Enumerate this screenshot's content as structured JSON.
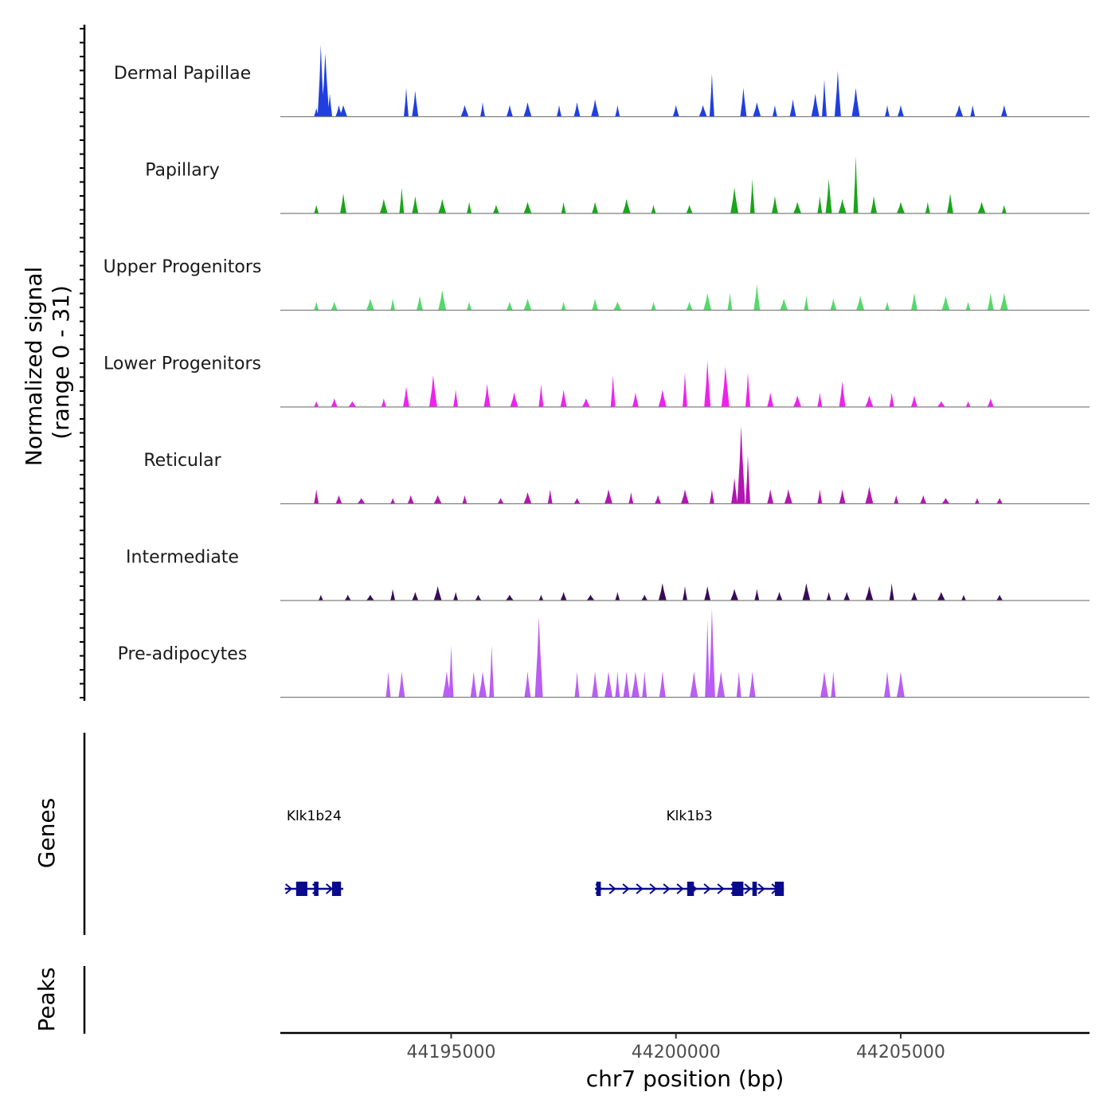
{
  "chart_data": {
    "type": "area",
    "chromosome": "chr7",
    "xlabel": "chr7 position (bp)",
    "ylabel": "Normalized signal",
    "ylabel_range": "(range 0 - 31)",
    "ylim": [
      0,
      31
    ],
    "xlim": [
      44191200,
      44209200
    ],
    "x_ticks": [
      44195000,
      44200000,
      44205000
    ],
    "x_tick_labels": [
      "44195000",
      "44200000",
      "44205000"
    ],
    "track_labels": [
      "Dermal Papillae",
      "Papillary",
      "Upper Progenitors",
      "Lower Progenitors",
      "Reticular",
      "Intermediate",
      "Pre-adipocytes"
    ],
    "series": [
      {
        "name": "Dermal Papillae",
        "color": "#1f3fe0",
        "values": [
          [
            44192000,
            3
          ],
          [
            44192100,
            25
          ],
          [
            44192200,
            22
          ],
          [
            44192300,
            8
          ],
          [
            44192500,
            4
          ],
          [
            44192600,
            4
          ],
          [
            44194000,
            10
          ],
          [
            44194200,
            9
          ],
          [
            44195300,
            4
          ],
          [
            44195700,
            5
          ],
          [
            44196300,
            4
          ],
          [
            44196700,
            5
          ],
          [
            44197400,
            4
          ],
          [
            44197800,
            5
          ],
          [
            44198200,
            6
          ],
          [
            44198700,
            4
          ],
          [
            44200000,
            4
          ],
          [
            44200600,
            4
          ],
          [
            44200800,
            15
          ],
          [
            44201500,
            10
          ],
          [
            44201800,
            5
          ],
          [
            44202200,
            4
          ],
          [
            44202600,
            6
          ],
          [
            44203100,
            8
          ],
          [
            44203300,
            13
          ],
          [
            44203600,
            16
          ],
          [
            44204000,
            10
          ],
          [
            44204700,
            4
          ],
          [
            44205000,
            4
          ],
          [
            44206300,
            4
          ],
          [
            44206600,
            4
          ],
          [
            44207300,
            4
          ]
        ]
      },
      {
        "name": "Papillary",
        "color": "#1aa51a",
        "values": [
          [
            44192000,
            3
          ],
          [
            44192600,
            7
          ],
          [
            44193500,
            5
          ],
          [
            44193900,
            9
          ],
          [
            44194200,
            6
          ],
          [
            44194800,
            5
          ],
          [
            44195400,
            4
          ],
          [
            44196000,
            3
          ],
          [
            44196700,
            4
          ],
          [
            44197500,
            4
          ],
          [
            44198200,
            4
          ],
          [
            44198900,
            5
          ],
          [
            44199500,
            3
          ],
          [
            44200300,
            3
          ],
          [
            44201300,
            9
          ],
          [
            44201700,
            12
          ],
          [
            44202200,
            6
          ],
          [
            44202700,
            4
          ],
          [
            44203200,
            6
          ],
          [
            44203400,
            12
          ],
          [
            44203700,
            5
          ],
          [
            44204000,
            20
          ],
          [
            44204400,
            6
          ],
          [
            44205000,
            4
          ],
          [
            44205600,
            4
          ],
          [
            44206100,
            7
          ],
          [
            44206800,
            4
          ],
          [
            44207300,
            3
          ]
        ]
      },
      {
        "name": "Upper Progenitors",
        "color": "#55d96a",
        "values": [
          [
            44192000,
            3
          ],
          [
            44192400,
            3
          ],
          [
            44193200,
            4
          ],
          [
            44193700,
            4
          ],
          [
            44194300,
            5
          ],
          [
            44194800,
            7
          ],
          [
            44195400,
            3
          ],
          [
            44196300,
            3
          ],
          [
            44196700,
            4
          ],
          [
            44197500,
            3
          ],
          [
            44198200,
            4
          ],
          [
            44198700,
            3
          ],
          [
            44199500,
            3
          ],
          [
            44200300,
            3
          ],
          [
            44200700,
            6
          ],
          [
            44201200,
            6
          ],
          [
            44201800,
            9
          ],
          [
            44202400,
            4
          ],
          [
            44202900,
            5
          ],
          [
            44203500,
            4
          ],
          [
            44204100,
            5
          ],
          [
            44204700,
            3
          ],
          [
            44205300,
            6
          ],
          [
            44206000,
            5
          ],
          [
            44206500,
            3
          ],
          [
            44207000,
            6
          ],
          [
            44207300,
            6
          ]
        ]
      },
      {
        "name": "Lower Progenitors",
        "color": "#ee22ee",
        "values": [
          [
            44192000,
            2
          ],
          [
            44192400,
            3
          ],
          [
            44192800,
            2
          ],
          [
            44193500,
            3
          ],
          [
            44194000,
            7
          ],
          [
            44194600,
            11
          ],
          [
            44195100,
            6
          ],
          [
            44195800,
            8
          ],
          [
            44196400,
            5
          ],
          [
            44197000,
            8
          ],
          [
            44197500,
            6
          ],
          [
            44198000,
            3
          ],
          [
            44198600,
            11
          ],
          [
            44199100,
            5
          ],
          [
            44199700,
            6
          ],
          [
            44200200,
            12
          ],
          [
            44200700,
            16
          ],
          [
            44201100,
            14
          ],
          [
            44201600,
            12
          ],
          [
            44202100,
            5
          ],
          [
            44202700,
            4
          ],
          [
            44203200,
            5
          ],
          [
            44203700,
            9
          ],
          [
            44204300,
            4
          ],
          [
            44204800,
            5
          ],
          [
            44205300,
            4
          ],
          [
            44205900,
            2
          ],
          [
            44206500,
            2
          ],
          [
            44207000,
            3
          ]
        ]
      },
      {
        "name": "Reticular",
        "color": "#b215b2",
        "values": [
          [
            44192000,
            5
          ],
          [
            44192500,
            3
          ],
          [
            44193000,
            2
          ],
          [
            44193700,
            2
          ],
          [
            44194100,
            3
          ],
          [
            44194700,
            3
          ],
          [
            44195300,
            3
          ],
          [
            44196100,
            2
          ],
          [
            44196700,
            4
          ],
          [
            44197200,
            5
          ],
          [
            44197800,
            2
          ],
          [
            44198500,
            5
          ],
          [
            44199000,
            4
          ],
          [
            44199600,
            3
          ],
          [
            44200200,
            5
          ],
          [
            44200800,
            5
          ],
          [
            44201300,
            9
          ],
          [
            44201450,
            27
          ],
          [
            44201600,
            17
          ],
          [
            44202100,
            5
          ],
          [
            44202500,
            5
          ],
          [
            44203200,
            5
          ],
          [
            44203700,
            5
          ],
          [
            44204300,
            6
          ],
          [
            44204900,
            3
          ],
          [
            44205500,
            3
          ],
          [
            44206000,
            2
          ],
          [
            44206700,
            2
          ],
          [
            44207200,
            2
          ]
        ]
      },
      {
        "name": "Intermediate",
        "color": "#3a0a5a",
        "values": [
          [
            44192100,
            2
          ],
          [
            44192700,
            2
          ],
          [
            44193200,
            2
          ],
          [
            44193700,
            4
          ],
          [
            44194200,
            3
          ],
          [
            44194700,
            5
          ],
          [
            44195100,
            3
          ],
          [
            44195600,
            2
          ],
          [
            44196300,
            2
          ],
          [
            44197000,
            2
          ],
          [
            44197500,
            3
          ],
          [
            44198100,
            2
          ],
          [
            44198700,
            3
          ],
          [
            44199300,
            2
          ],
          [
            44199700,
            6
          ],
          [
            44200200,
            5
          ],
          [
            44200700,
            5
          ],
          [
            44201300,
            4
          ],
          [
            44201800,
            4
          ],
          [
            44202300,
            3
          ],
          [
            44202900,
            6
          ],
          [
            44203400,
            3
          ],
          [
            44203800,
            3
          ],
          [
            44204300,
            5
          ],
          [
            44204800,
            6
          ],
          [
            44205300,
            3
          ],
          [
            44205900,
            3
          ],
          [
            44206400,
            2
          ],
          [
            44207200,
            2
          ]
        ]
      },
      {
        "name": "Pre-adipocytes",
        "color": "#b95df3",
        "values": [
          [
            44193600,
            9
          ],
          [
            44193900,
            9
          ],
          [
            44194900,
            9
          ],
          [
            44195000,
            18
          ],
          [
            44195500,
            9
          ],
          [
            44195700,
            9
          ],
          [
            44195900,
            18
          ],
          [
            44196700,
            9
          ],
          [
            44196950,
            28
          ],
          [
            44197800,
            9
          ],
          [
            44198200,
            9
          ],
          [
            44198500,
            9
          ],
          [
            44198700,
            9
          ],
          [
            44198900,
            9
          ],
          [
            44199100,
            9
          ],
          [
            44199300,
            9
          ],
          [
            44199700,
            9
          ],
          [
            44200400,
            9
          ],
          [
            44200700,
            27
          ],
          [
            44200800,
            31
          ],
          [
            44201000,
            9
          ],
          [
            44201400,
            9
          ],
          [
            44201700,
            9
          ],
          [
            44203300,
            9
          ],
          [
            44203500,
            9
          ],
          [
            44204700,
            9
          ],
          [
            44205000,
            9
          ]
        ]
      }
    ],
    "genes_label": "Genes",
    "peaks_label": "Peaks",
    "genes": [
      {
        "name": "Klk1b24",
        "start": 44191300,
        "end": 44192600,
        "strand": "+",
        "color": "#0a0a8c",
        "exons": [
          [
            44191550,
            44191800
          ],
          [
            44191950,
            44192050
          ],
          [
            44192350,
            44192550
          ]
        ]
      },
      {
        "name": "Klk1b3",
        "start": 44198200,
        "end": 44202400,
        "strand": "+",
        "color": "#0a0a8c",
        "exons": [
          [
            44198230,
            44198330
          ],
          [
            44200250,
            44200400
          ],
          [
            44201250,
            44201500
          ],
          [
            44201700,
            44201800
          ],
          [
            44202200,
            44202400
          ]
        ]
      }
    ]
  }
}
